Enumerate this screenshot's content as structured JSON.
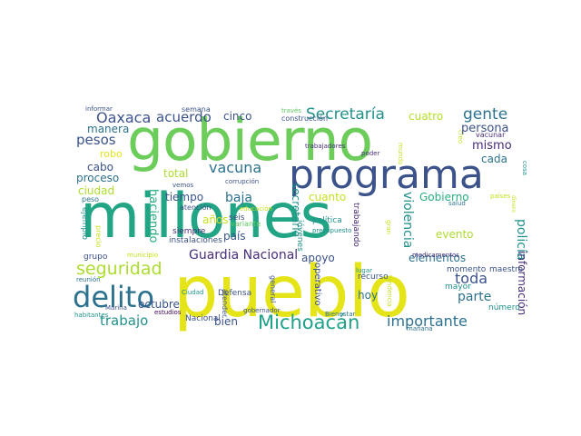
{
  "colors": {
    "background": "#ffffff",
    "palette": [
      "#440154",
      "#472d7b",
      "#3b528b",
      "#2c728e",
      "#21918c",
      "#28ae80",
      "#5ec962",
      "#addc30",
      "#fde725"
    ]
  },
  "words": [
    {
      "text": "millones",
      "color": "#21a585"
    },
    {
      "text": "pueblo",
      "color": "#e5e419"
    },
    {
      "text": "gobierno",
      "color": "#6ccd5a"
    },
    {
      "text": "programa",
      "color": "#3b528b"
    },
    {
      "text": "delito",
      "color": "#2c728e"
    },
    {
      "text": "Michoacán",
      "color": "#1fa187"
    },
    {
      "text": "seguridad",
      "color": "#addc30"
    },
    {
      "text": "Secretaría",
      "color": "#21918c"
    },
    {
      "text": "gente",
      "color": "#2c728e"
    },
    {
      "text": "Oaxaca",
      "color": "#3b528b"
    },
    {
      "text": "acuerdo",
      "color": "#3b528b"
    },
    {
      "text": "importante",
      "color": "#2c728e"
    },
    {
      "text": "Guardia Nacional",
      "color": "#472d7b"
    },
    {
      "text": "vacuna",
      "color": "#2c728e"
    },
    {
      "text": "trabajo",
      "color": "#21918c"
    },
    {
      "text": "toda",
      "color": "#3b528b"
    },
    {
      "text": "pesos",
      "color": "#3b528b"
    },
    {
      "text": "parte",
      "color": "#2c728e"
    },
    {
      "text": "manera",
      "color": "#2c728e"
    },
    {
      "text": "persona",
      "color": "#3b528b"
    },
    {
      "text": "mismo",
      "color": "#472d7b"
    },
    {
      "text": "cada",
      "color": "#2c728e"
    },
    {
      "text": "cinco",
      "color": "#3b528b"
    },
    {
      "text": "cuatro",
      "color": "#b5de2b"
    },
    {
      "text": "robo",
      "color": "#e5e419"
    },
    {
      "text": "cabo",
      "color": "#3b528b"
    },
    {
      "text": "proceso",
      "color": "#2c728e"
    },
    {
      "text": "total",
      "color": "#addc30"
    },
    {
      "text": "ciudad",
      "color": "#addc30"
    },
    {
      "text": "tiempo",
      "color": "#3b528b"
    },
    {
      "text": "baja",
      "color": "#2c728e"
    },
    {
      "text": "años",
      "color": "#c8e020"
    },
    {
      "text": "país",
      "color": "#3b528b"
    },
    {
      "text": "cuanto",
      "color": "#c8e020"
    },
    {
      "text": "Gobierno",
      "color": "#28ae80"
    },
    {
      "text": "evento",
      "color": "#addc30"
    },
    {
      "text": "apoyo",
      "color": "#3b528b"
    },
    {
      "text": "elementos",
      "color": "#2c728e"
    },
    {
      "text": "octubre",
      "color": "#3b528b"
    },
    {
      "text": "hoy",
      "color": "#2c728e"
    },
    {
      "text": "bien",
      "color": "#3b528b"
    },
    {
      "text": "haciendo",
      "color": "#28ae80"
    },
    {
      "text": "secretario",
      "color": "#21918c"
    },
    {
      "text": "violencia",
      "color": "#21918c"
    },
    {
      "text": "policía",
      "color": "#21918c"
    },
    {
      "text": "información",
      "color": "#472d7b"
    },
    {
      "text": "operativo",
      "color": "#3b528b"
    },
    {
      "text": "trabajando",
      "color": "#472d7b"
    },
    {
      "text": "jóvenes",
      "color": "#3b528b"
    },
    {
      "text": "ejemplo",
      "color": "#5ec962"
    },
    {
      "text": "precio",
      "color": "#472d7b"
    },
    {
      "text": "atender",
      "color": "#3b528b"
    },
    {
      "text": "general",
      "color": "#3b528b"
    },
    {
      "text": "tendencia",
      "color": "#21918c"
    },
    {
      "text": "gran",
      "color": "#21918c"
    },
    {
      "text": "mundo",
      "color": "#21918c"
    },
    {
      "text": "creo",
      "color": "#3b528b"
    },
    {
      "text": "cosa",
      "color": "#2c728e"
    },
    {
      "text": "dinero",
      "color": "#3b528b"
    },
    {
      "text": "seis",
      "color": "#3b528b"
    },
    {
      "text": "variante",
      "color": "#21918c"
    },
    {
      "text": "siempre",
      "color": "#21918c"
    },
    {
      "text": "instalaciones",
      "color": "#3b528b"
    },
    {
      "text": "atención",
      "color": "#21918c"
    },
    {
      "text": "política",
      "color": "#3b528b"
    },
    {
      "text": "presupuesto",
      "color": "#3b528b"
    },
    {
      "text": "recurso",
      "color": "#3b528b"
    },
    {
      "text": "salud",
      "color": "#21918c"
    },
    {
      "text": "momento",
      "color": "#2c728e"
    },
    {
      "text": "maestro",
      "color": "#2c728e"
    },
    {
      "text": "mayor",
      "color": "#3b528b"
    },
    {
      "text": "número",
      "color": "#440154"
    },
    {
      "text": "Defensa",
      "color": "#3b528b"
    },
    {
      "text": "Ciudad",
      "color": "#21918c"
    },
    {
      "text": "gobernador",
      "color": "#2c728e"
    },
    {
      "text": "lugar",
      "color": "#3b528b"
    },
    {
      "text": "Bienestar",
      "color": "#21918c"
    },
    {
      "text": "mañana",
      "color": "#c8e020"
    },
    {
      "text": "Nacional",
      "color": "#2c728e"
    },
    {
      "text": "estudios",
      "color": "#c8e020"
    },
    {
      "text": "Marina",
      "color": "#3b528b"
    },
    {
      "text": "habitantes",
      "color": "#3b528b"
    },
    {
      "text": "reunión",
      "color": "#3b528b"
    },
    {
      "text": "grupo",
      "color": "#5ec962"
    },
    {
      "text": "peso",
      "color": "#3b528b"
    },
    {
      "text": "municipio",
      "color": "#472d7b"
    },
    {
      "text": "vemos",
      "color": "#472d7b"
    },
    {
      "text": "informar",
      "color": "#472d7b"
    },
    {
      "text": "semana",
      "color": "#c8e020"
    },
    {
      "text": "través",
      "color": "#c8e020"
    },
    {
      "text": "construcción",
      "color": "#21918c"
    },
    {
      "text": "trabajadores",
      "color": "#c8e020"
    },
    {
      "text": "poder",
      "color": "#3b528b"
    },
    {
      "text": "vacunar",
      "color": "#c8e020"
    },
    {
      "text": "países",
      "color": "#472d7b"
    },
    {
      "text": "corrupción",
      "color": "#c8e020"
    },
    {
      "text": "educación",
      "color": "#c8e020"
    },
    {
      "text": "medicamentos",
      "color": "#c8e020"
    }
  ]
}
